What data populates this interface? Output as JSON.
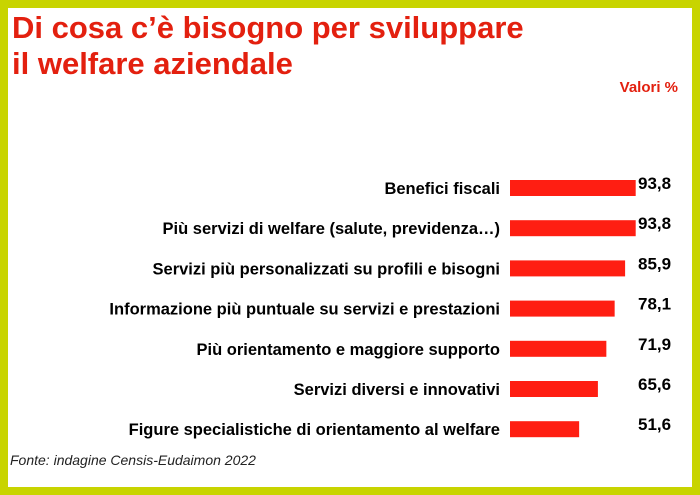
{
  "header": {
    "title": "Di cosa c’è bisogno per sviluppare\nil welfare aziendale",
    "unit_label": "Valori %"
  },
  "footer": {
    "source": "Fonte: indagine Censis-Eudaimon 2022"
  },
  "colors": {
    "accent": "#e3200f",
    "border": "#c8d400",
    "bar": "#ff1e12",
    "text": "#000000"
  },
  "chart_data": {
    "type": "bar",
    "orientation": "horizontal",
    "categories": [
      "Benefici fiscali",
      "Più servizi di welfare (salute, previdenza…)",
      "Servizi più personalizzati su profili e bisogni",
      "Informazione più puntuale su servizi e prestazioni",
      "Più orientamento e maggiore supporto",
      "Servizi diversi e innovativi",
      "Figure specialistiche di orientamento al welfare"
    ],
    "values": [
      93.8,
      93.8,
      85.9,
      78.1,
      71.9,
      65.6,
      51.6
    ],
    "value_labels": [
      "93,8",
      "93,8",
      "85,9",
      "78,1",
      "71,9",
      "65,6",
      "51,6"
    ],
    "xlim": [
      0,
      100
    ],
    "grid": false,
    "legend": false
  }
}
